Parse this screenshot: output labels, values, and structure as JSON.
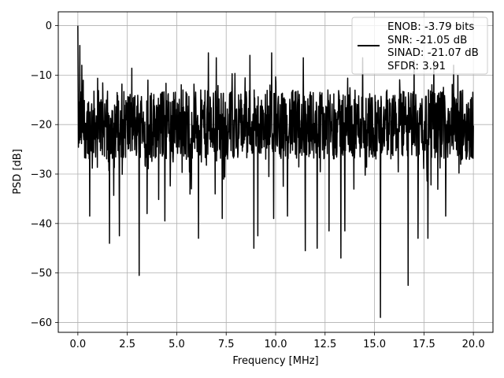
{
  "chart_data": {
    "type": "line",
    "xlabel": "Frequency [MHz]",
    "ylabel": "PSD [dB]",
    "xlim": [
      -0.99,
      20.99
    ],
    "ylim": [
      -62.0,
      2.8
    ],
    "x_ticks": [
      0.0,
      2.5,
      5.0,
      7.5,
      10.0,
      12.5,
      15.0,
      17.5,
      20.0
    ],
    "x_tick_labels": [
      "0.0",
      "2.5",
      "5.0",
      "7.5",
      "10.0",
      "12.5",
      "15.0",
      "17.5",
      "20.0"
    ],
    "y_ticks": [
      0,
      -10,
      -20,
      -30,
      -40,
      -50,
      -60
    ],
    "y_tick_labels": [
      "0",
      "−10",
      "−20",
      "−30",
      "−40",
      "−50",
      "−60"
    ],
    "grid": true,
    "legend_position": "top-right",
    "legend_lines": [
      "ENOB: -3.79 bits",
      "SNR: -21.05 dB",
      "SINAD: -21.07 dB",
      "SFDR: 3.91"
    ],
    "series": [
      {
        "color": "#000000",
        "x_range": [
          0.0,
          20.0
        ],
        "peak": {
          "x": 0.0,
          "y": 0.0
        },
        "typical_band": [
          -27,
          -13
        ],
        "upper_spikes": [
          {
            "x": 0.1,
            "y": -4
          },
          {
            "x": 0.2,
            "y": -8
          },
          {
            "x": 6.6,
            "y": -5.5
          },
          {
            "x": 7.0,
            "y": -6.5
          },
          {
            "x": 8.7,
            "y": -6
          },
          {
            "x": 9.8,
            "y": -5.5
          },
          {
            "x": 11.4,
            "y": -6.5
          },
          {
            "x": 14.4,
            "y": -6.5
          },
          {
            "x": 17.0,
            "y": -7
          },
          {
            "x": 18.0,
            "y": -7
          },
          {
            "x": 19.0,
            "y": -8
          }
        ],
        "lower_spikes": [
          {
            "x": 0.6,
            "y": -38.5
          },
          {
            "x": 1.6,
            "y": -44
          },
          {
            "x": 2.1,
            "y": -42.5
          },
          {
            "x": 3.1,
            "y": -50.5
          },
          {
            "x": 3.5,
            "y": -38
          },
          {
            "x": 4.4,
            "y": -39.5
          },
          {
            "x": 6.1,
            "y": -43
          },
          {
            "x": 7.3,
            "y": -39
          },
          {
            "x": 8.9,
            "y": -45
          },
          {
            "x": 9.1,
            "y": -42.5
          },
          {
            "x": 9.9,
            "y": -39
          },
          {
            "x": 10.6,
            "y": -38.5
          },
          {
            "x": 11.5,
            "y": -45.5
          },
          {
            "x": 12.1,
            "y": -45
          },
          {
            "x": 12.7,
            "y": -41.5
          },
          {
            "x": 13.3,
            "y": -47
          },
          {
            "x": 13.5,
            "y": -41.5
          },
          {
            "x": 15.3,
            "y": -59
          },
          {
            "x": 16.7,
            "y": -52.5
          },
          {
            "x": 17.2,
            "y": -43
          },
          {
            "x": 17.7,
            "y": -43
          },
          {
            "x": 18.6,
            "y": -38.5
          }
        ]
      }
    ]
  }
}
